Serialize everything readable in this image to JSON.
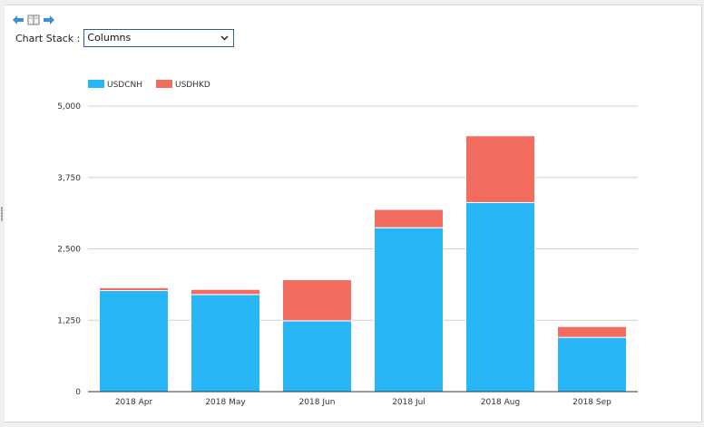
{
  "toolbar": {
    "icons": [
      "back-arrow-icon",
      "split-view-icon",
      "forward-arrow-icon"
    ]
  },
  "controls": {
    "stack_label": "Chart Stack :",
    "stack_value": "Columns"
  },
  "chart_data": {
    "type": "bar",
    "stacked": true,
    "categories": [
      "2018 Apr",
      "2018 May",
      "2018 Jun",
      "2018 Jul",
      "2018 Aug",
      "2018 Sep"
    ],
    "series": [
      {
        "name": "USDCNH",
        "color": "#29b6f6",
        "values": [
          1770,
          1700,
          1240,
          2870,
          3310,
          950
        ]
      },
      {
        "name": "USDHKD",
        "color": "#f36c60",
        "values": [
          50,
          90,
          720,
          320,
          1170,
          190
        ]
      }
    ],
    "title": "",
    "xlabel": "",
    "ylabel": "",
    "ylim": [
      0,
      5000
    ],
    "yticks": [
      0,
      1250,
      2500,
      3750,
      5000
    ],
    "ytick_labels": [
      "0",
      "1,250",
      "2,500",
      "3,750",
      "5,000"
    ],
    "grid": true,
    "legend": "top-left"
  }
}
